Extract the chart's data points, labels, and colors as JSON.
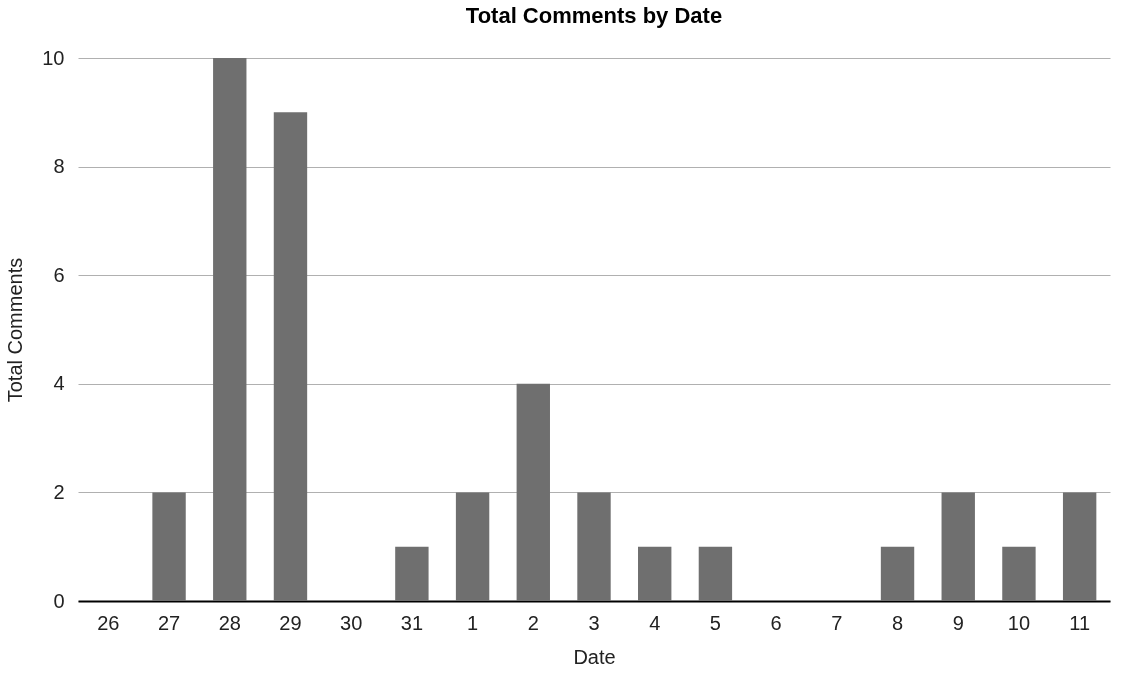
{
  "chart_data": {
    "type": "bar",
    "title": "Total Comments by Date",
    "xlabel": "Date",
    "ylabel": "Total Comments",
    "categories": [
      "26",
      "27",
      "28",
      "29",
      "30",
      "31",
      "1",
      "2",
      "3",
      "4",
      "5",
      "6",
      "7",
      "8",
      "9",
      "10",
      "11"
    ],
    "values": [
      0,
      2,
      10,
      9,
      0,
      1,
      2,
      4,
      2,
      1,
      1,
      0,
      0,
      1,
      2,
      1,
      2
    ],
    "color": "#6f6f6f",
    "ylim": [
      0,
      10
    ],
    "yticks": [
      0,
      2,
      4,
      6,
      8,
      10
    ],
    "grid": "y"
  }
}
